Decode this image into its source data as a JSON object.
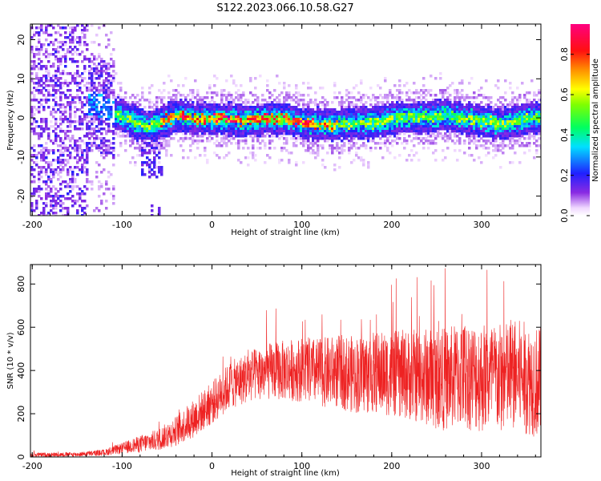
{
  "title": "S122.2023.066.10.58.G27",
  "colors": {
    "snr_line": "#ee2222",
    "frame": "#000000",
    "background": "#ffffff"
  },
  "chart_data": [
    {
      "type": "heatmap",
      "title": "",
      "xlabel": "Height of straight line (km)",
      "ylabel": "Frequency (Hz)",
      "xlim": [
        -202,
        366
      ],
      "ylim": [
        -25,
        24
      ],
      "x_ticks": [
        -200,
        -100,
        0,
        100,
        200,
        300
      ],
      "x_tick_labels": [
        "-200",
        "-100",
        "0",
        "100",
        "200",
        "300"
      ],
      "y_ticks": [
        -20,
        -10,
        0,
        10,
        20
      ],
      "y_tick_labels": [
        "-20",
        "-10",
        "0",
        "10",
        "20"
      ],
      "grid": false,
      "colorbar": {
        "label": "Normalized spectral amplitude",
        "range": [
          0,
          0.95
        ],
        "ticks": [
          0.0,
          0.2,
          0.4,
          0.6,
          0.8
        ],
        "tick_labels": [
          "0.0",
          "0.2",
          "0.4",
          "0.6",
          "0.8"
        ],
        "colormap": "rainbow (white-violet-blue-cyan-green-yellow-red-magenta)"
      },
      "ridge": {
        "description": "dominant frequency ridge",
        "points": [
          [
            -130,
            4
          ],
          [
            -115,
            2
          ],
          [
            -100,
            0.5
          ],
          [
            -85,
            -1
          ],
          [
            -70,
            -2
          ],
          [
            -60,
            -1
          ],
          [
            -50,
            0
          ],
          [
            -40,
            1
          ],
          [
            -30,
            0.5
          ],
          [
            -20,
            0
          ],
          [
            0,
            0
          ],
          [
            20,
            0
          ],
          [
            40,
            -0.5
          ],
          [
            60,
            0
          ],
          [
            80,
            0
          ],
          [
            100,
            -1
          ],
          [
            120,
            -1.5
          ],
          [
            140,
            -1.5
          ],
          [
            160,
            -1
          ],
          [
            180,
            -1
          ],
          [
            200,
            0
          ],
          [
            220,
            0.5
          ],
          [
            240,
            0.5
          ],
          [
            260,
            1
          ],
          [
            280,
            0
          ],
          [
            300,
            -0.5
          ],
          [
            320,
            -1.5
          ],
          [
            340,
            -0.5
          ],
          [
            360,
            0.5
          ]
        ]
      }
    },
    {
      "type": "line",
      "title": "",
      "xlabel": "Height of straight line (km)",
      "ylabel": "SNR (10 * v/v)",
      "xlim": [
        -202,
        366
      ],
      "ylim": [
        0,
        890
      ],
      "x_ticks": [
        -200,
        -100,
        0,
        100,
        200,
        300
      ],
      "x_tick_labels": [
        "-200",
        "-100",
        "0",
        "100",
        "200",
        "300"
      ],
      "y_ticks": [
        0,
        200,
        400,
        600,
        800
      ],
      "y_tick_labels": [
        "0",
        "200",
        "400",
        "600",
        "800"
      ],
      "grid": false,
      "series": [
        {
          "name": "",
          "x": [
            -200,
            -150,
            -120,
            -100,
            -80,
            -60,
            -40,
            -20,
            0,
            20,
            40,
            60,
            80,
            100,
            120,
            140,
            160,
            180,
            200,
            220,
            240,
            260,
            280,
            300,
            320,
            340,
            360,
            366
          ],
          "y": [
            10,
            12,
            20,
            40,
            60,
            80,
            120,
            180,
            250,
            330,
            370,
            395,
            400,
            405,
            390,
            395,
            380,
            390,
            385,
            380,
            370,
            360,
            380,
            370,
            360,
            380,
            350,
            340
          ],
          "spread": [
            10,
            10,
            15,
            25,
            40,
            50,
            70,
            90,
            100,
            110,
            120,
            130,
            140,
            150,
            160,
            170,
            180,
            190,
            200,
            210,
            230,
            240,
            250,
            260,
            260,
            260,
            260,
            260
          ]
        }
      ]
    }
  ]
}
